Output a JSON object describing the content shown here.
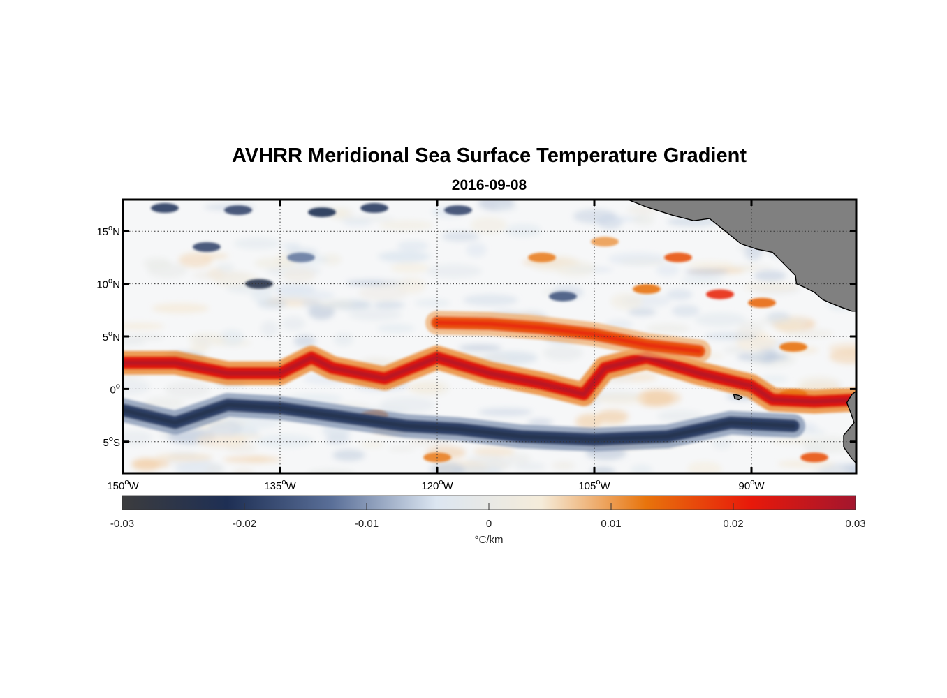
{
  "chart_data": {
    "type": "heatmap",
    "title": "AVHRR Meridional Sea Surface Temperature Gradient",
    "subtitle": "2016-09-08",
    "x_ticks": [
      {
        "deg": 150,
        "hemi": "W"
      },
      {
        "deg": 135,
        "hemi": "W"
      },
      {
        "deg": 120,
        "hemi": "W"
      },
      {
        "deg": 105,
        "hemi": "W"
      },
      {
        "deg": 90,
        "hemi": "W"
      }
    ],
    "y_ticks": [
      {
        "deg": 15,
        "hemi": "N"
      },
      {
        "deg": 10,
        "hemi": "N"
      },
      {
        "deg": 5,
        "hemi": "N"
      },
      {
        "deg": 0,
        "hemi": ""
      },
      {
        "deg": 5,
        "hemi": "S"
      }
    ],
    "lon_range": [
      -150,
      -80
    ],
    "lat_range": [
      -8,
      18
    ],
    "grid": "dotted",
    "colorbar": {
      "ticks": [
        "-0.03",
        "-0.02",
        "-0.01",
        "0",
        "0.01",
        "0.02",
        "0.03"
      ],
      "range": [
        -0.03,
        0.03
      ],
      "label": "°C/km",
      "colors": [
        "#3c3c3e",
        "#1e2f54",
        "#5a6f98",
        "#dce6f1",
        "#f5ecda",
        "#e8740c",
        "#e8190a",
        "#a3162e"
      ]
    },
    "land_color": "#808080",
    "features": [
      {
        "name": "equatorial warm front",
        "sign": "positive",
        "path_lonlat": [
          [
            -150,
            2.5
          ],
          [
            -145,
            2.5
          ],
          [
            -140,
            1.5
          ],
          [
            -135,
            1.5
          ],
          [
            -132,
            3
          ],
          [
            -130,
            2
          ],
          [
            -125,
            1
          ],
          [
            -120,
            3
          ],
          [
            -115,
            1.5
          ],
          [
            -110,
            0.5
          ],
          [
            -106,
            -0.5
          ],
          [
            -104,
            2
          ],
          [
            -100,
            3
          ],
          [
            -95,
            1.5
          ],
          [
            -90,
            0.3
          ],
          [
            -88,
            -1
          ],
          [
            -84,
            -1.2
          ],
          [
            -80,
            -1
          ]
        ],
        "peak": 0.028
      },
      {
        "name": "northern warm band",
        "sign": "positive",
        "path_lonlat": [
          [
            -120,
            6.3
          ],
          [
            -115,
            6.2
          ],
          [
            -110,
            5.8
          ],
          [
            -105,
            5.2
          ],
          [
            -100,
            4.2
          ],
          [
            -95,
            3.6
          ]
        ],
        "peak": 0.02
      },
      {
        "name": "southern cold band",
        "sign": "negative",
        "path_lonlat": [
          [
            -150,
            -2
          ],
          [
            -145,
            -3.2
          ],
          [
            -140,
            -1.5
          ],
          [
            -135,
            -1.8
          ],
          [
            -128,
            -2.8
          ],
          [
            -123,
            -3.5
          ],
          [
            -118,
            -3.8
          ],
          [
            -112,
            -4.5
          ],
          [
            -105,
            -4.8
          ],
          [
            -98,
            -4.5
          ],
          [
            -92,
            -3.2
          ],
          [
            -86,
            -3.5
          ]
        ],
        "peak": -0.024
      }
    ]
  }
}
